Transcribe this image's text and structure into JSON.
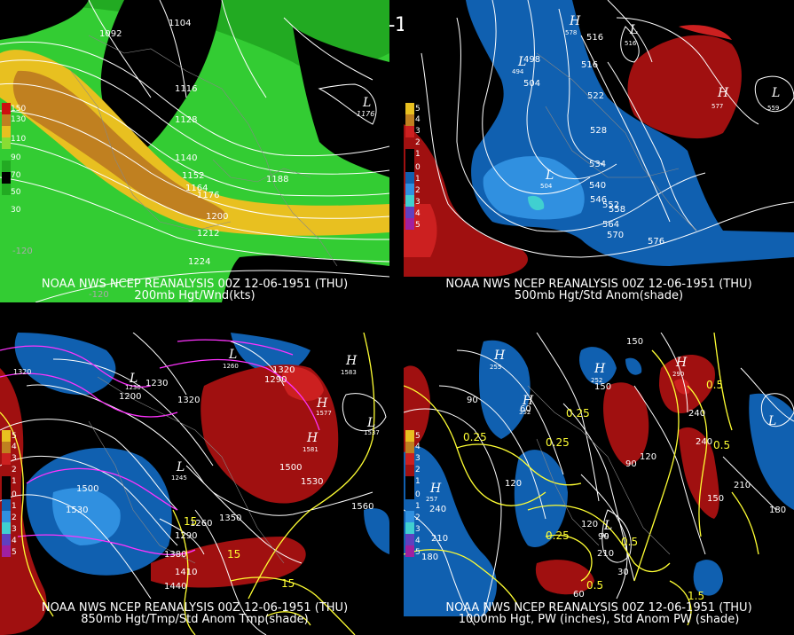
{
  "title": "00Z 12-06-1951 (THU)",
  "colors": {
    "background": "#000000",
    "jet_green_light": "#33cc33",
    "jet_green_mid": "#22aa22",
    "jet_yellow": "#e8c020",
    "jet_orange": "#c08020",
    "anom_positive": "#a01010",
    "anom_negative": "#1060b0",
    "anom_negative_strong": "#3090e0",
    "contour_white": "#ffffff",
    "contour_yellow": "#ffff33",
    "contour_magenta": "#ff33ff"
  },
  "panels": {
    "top_left": {
      "caption_line1": "NOAA NWS NCEP REANALYSIS 00Z 12-06-1951 (THU)",
      "caption_line2": "200mb Hgt/Wnd(kts)",
      "contour_labels": [
        "1104",
        "1092",
        "1116",
        "1128",
        "1140",
        "1152",
        "1164",
        "1176",
        "1188",
        "1200",
        "1212",
        "1224"
      ],
      "low_marker": "L",
      "low_value": "1176",
      "colorbar_labels": [
        "150",
        "130",
        "110",
        "90",
        "70",
        "50",
        "30"
      ],
      "lon_labels": [
        "-120",
        "-120"
      ]
    },
    "top_right": {
      "caption_line1": "NOAA NWS NCEP REANALYSIS 00Z 12-06-1951 (THU)",
      "caption_line2": "500mb Hgt/Std Anom(shade)",
      "contour_labels": [
        "516",
        "498",
        "504",
        "516",
        "522",
        "528",
        "534",
        "540",
        "546",
        "552",
        "558",
        "564",
        "570",
        "576"
      ],
      "highs": [
        "H",
        "H"
      ],
      "high_values": [
        "578",
        "577"
      ],
      "lows": [
        "L",
        "L",
        "L",
        "L"
      ],
      "low_values": [
        "516",
        "494",
        "504",
        "559"
      ],
      "colorbar_labels": [
        "5",
        "4",
        "3",
        "2",
        "1",
        "0",
        "1",
        "2",
        "3",
        "4",
        "5"
      ]
    },
    "bottom_left": {
      "caption_line1": "NOAA NWS NCEP REANALYSIS 00Z 12-06-1951 (THU)",
      "caption_line2": "850mb Hgt/Tmp/Std Anom Tmp(shade)",
      "contour_labels": [
        "1320",
        "1230",
        "1200",
        "1320",
        "1290",
        "1320",
        "1500",
        "1530",
        "1500",
        "1530",
        "1560",
        "1350",
        "1290",
        "1380",
        "1410",
        "1440",
        "1260"
      ],
      "temp_labels": [
        "15",
        "15",
        "15"
      ],
      "highs": [
        "H",
        "H",
        "H"
      ],
      "high_values": [
        "1583",
        "1577",
        "1581"
      ],
      "lows": [
        "L",
        "L",
        "L",
        "L"
      ],
      "low_values": [
        "1230",
        "1260",
        "1245",
        "1537"
      ],
      "colorbar_labels": [
        "5",
        "4",
        "3",
        "2",
        "1",
        "0",
        "1",
        "2",
        "3",
        "4",
        "5"
      ]
    },
    "bottom_right": {
      "caption_line1": "NOAA NWS NCEP REANALYSIS 00Z 12-06-1951 (THU)",
      "caption_line2": "1000mb Hgt, PW (inches), Std Anom PW (shade)",
      "contour_labels": [
        "150",
        "90",
        "60",
        "150",
        "120",
        "90",
        "120",
        "240",
        "240",
        "210",
        "180",
        "150",
        "30",
        "60",
        "90",
        "120",
        "210",
        "180",
        "240",
        "210"
      ],
      "pw_labels": [
        "0.25",
        "0.25",
        "0.25",
        "0.25",
        "0.5",
        "0.5",
        "0.5",
        "1.5",
        "0.5"
      ],
      "highs": [
        "H",
        "H",
        "H",
        "H",
        "H"
      ],
      "high_values": [
        "255",
        "252",
        "290",
        "352",
        "257"
      ],
      "lows": [
        "L",
        "L"
      ],
      "low_values": [
        "",
        "90"
      ],
      "colorbar_labels": [
        "5",
        "4",
        "3",
        "2",
        "1",
        "0",
        "1",
        "2",
        "3",
        "4",
        "5"
      ]
    }
  }
}
